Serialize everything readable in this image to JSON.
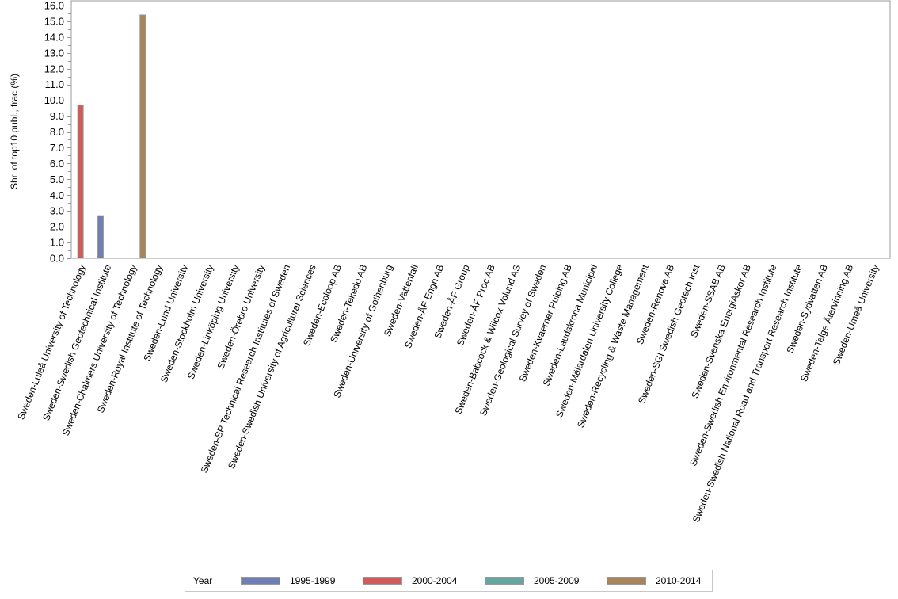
{
  "chart_data": {
    "type": "bar",
    "title": "",
    "xlabel": "",
    "ylabel": "Shr. of top10 publ., frac (%)",
    "ylim": [
      0,
      16
    ],
    "yticks": [
      "0.0",
      "1.0",
      "2.0",
      "3.0",
      "4.0",
      "5.0",
      "6.0",
      "7.0",
      "8.0",
      "9.0",
      "10.0",
      "11.0",
      "12.0",
      "13.0",
      "14.0",
      "15.0",
      "16.0"
    ],
    "grid": false,
    "legend_position": "bottom",
    "legend_title": "Year",
    "categories": [
      "Sweden-Luleå University of Technology",
      "Sweden-Swedish Geotechnical Institute",
      "Sweden-Chalmers University of Technology",
      "Sweden-Royal Institute of Technology",
      "Sweden-Lund University",
      "Sweden-Stockholm University",
      "Sweden-Linköping University",
      "Sweden-Örebro University",
      "Sweden-SP Technical Research Institutes of Sweden",
      "Sweden-Swedish University of Agricultural Sciences",
      "Sweden-Ecoloop AB",
      "Sweden-Tekedo AB",
      "Sweden-University of Gothenburg",
      "Sweden-Vattenfall",
      "Sweden-ÅF Engn AB",
      "Sweden-ÅF Group",
      "Sweden-ÅF Proc AB",
      "Sweden-Babcock & Wilcox Volund AS",
      "Sweden-Geological Survey of Sweden",
      "Sweden-Kvaerner Pulping AB",
      "Sweden-Laudskrona Municipal",
      "Sweden-Mälardalen University College",
      "Sweden-Recycling & Waste Management",
      "Sweden-Renova AB",
      "Sweden-SGI Swedish Geotech Inst",
      "Sweden-SSAB AB",
      "Sweden-Svenska EnergiAskor AB",
      "Sweden-Swedish Environmental Research Institute",
      "Sweden-Swedish National Road and Transport Research Institute",
      "Sweden-Sydvatten AB",
      "Sweden-Telge Återvinning AB",
      "Sweden-Umeå University"
    ],
    "series": [
      {
        "name": "1995-1999",
        "color": "#6f7eb3",
        "values": [
          0,
          2.7,
          0,
          0,
          0,
          0,
          0,
          0,
          0,
          0,
          0,
          0,
          0,
          0,
          0,
          0,
          0,
          0,
          0,
          0,
          0,
          0,
          0,
          0,
          0,
          0,
          0,
          0,
          0,
          0,
          0,
          0
        ]
      },
      {
        "name": "2000-2004",
        "color": "#d05b5b",
        "values": [
          9.7,
          0,
          0,
          0,
          0,
          0,
          0,
          0,
          0,
          0,
          0,
          0,
          0,
          0,
          0,
          0,
          0,
          0,
          0,
          0,
          0,
          0,
          0,
          0,
          0,
          0,
          0,
          0,
          0,
          0,
          0,
          0
        ]
      },
      {
        "name": "2005-2009",
        "color": "#66a5a0",
        "values": [
          0,
          0,
          0,
          0,
          0,
          0,
          0,
          0,
          0,
          0,
          0,
          0,
          0,
          0,
          0,
          0,
          0,
          0,
          0,
          0,
          0,
          0,
          0,
          0,
          0,
          0,
          0,
          0,
          0,
          0,
          0,
          0
        ]
      },
      {
        "name": "2010-2014",
        "color": "#a8845a",
        "values": [
          0,
          0,
          15.4,
          0,
          0,
          0,
          0,
          0,
          0,
          0,
          0,
          0,
          0,
          0,
          0,
          0,
          0,
          0,
          0,
          0,
          0,
          0,
          0,
          0,
          0,
          0,
          0,
          0,
          0,
          0,
          0,
          0
        ]
      }
    ]
  },
  "legend": {
    "title": "Year",
    "items": [
      {
        "label": "1995-1999",
        "color": "#6f7eb3"
      },
      {
        "label": "2000-2004",
        "color": "#d05b5b"
      },
      {
        "label": "2005-2009",
        "color": "#66a5a0"
      },
      {
        "label": "2010-2014",
        "color": "#a8845a"
      }
    ]
  }
}
